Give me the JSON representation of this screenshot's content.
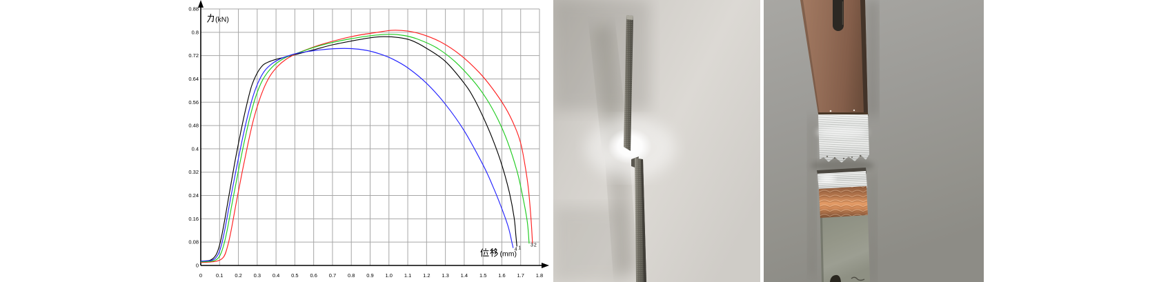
{
  "page": {
    "background": "#ffffff",
    "description": "force-displacement curves with two fractured specimen photos"
  },
  "chart_data": {
    "type": "line",
    "title": "",
    "xlabel": "位移(mm)",
    "ylabel": "力(kN)",
    "xlabel_unit": "(mm)",
    "ylabel_unit": "(kN)",
    "xlim": [
      0,
      1.8
    ],
    "ylim": [
      0,
      0.88
    ],
    "grid": true,
    "grid_color": "#a6a6a6",
    "axis_color": "#000000",
    "legend_position": "none",
    "x_tick_step": 0.1,
    "y_tick_step": 0.08,
    "x_tick_labels": [
      "0",
      "0.1",
      "0.2",
      "0.3",
      "0.4",
      "0.5",
      "0.6",
      "0.7",
      "0.8",
      "0.9",
      "1.0",
      "1.1",
      "1.2",
      "1.3",
      "1.4",
      "1.5",
      "1.6",
      "1.7",
      "1.8"
    ],
    "y_tick_labels": [
      "0",
      "0.08",
      "0.16",
      "0.24",
      "0.32",
      "0.4",
      "0.48",
      "0.56",
      "0.64",
      "0.72",
      "0.8",
      "0.88"
    ],
    "series": [
      {
        "name": "1",
        "color": "#000000",
        "points": [
          [
            0,
            0.015
          ],
          [
            0.05,
            0.018
          ],
          [
            0.08,
            0.035
          ],
          [
            0.1,
            0.07
          ],
          [
            0.12,
            0.13
          ],
          [
            0.15,
            0.24
          ],
          [
            0.18,
            0.35
          ],
          [
            0.21,
            0.45
          ],
          [
            0.24,
            0.54
          ],
          [
            0.27,
            0.615
          ],
          [
            0.3,
            0.66
          ],
          [
            0.33,
            0.687
          ],
          [
            0.36,
            0.698
          ],
          [
            0.4,
            0.707
          ],
          [
            0.45,
            0.715
          ],
          [
            0.5,
            0.723
          ],
          [
            0.6,
            0.74
          ],
          [
            0.7,
            0.757
          ],
          [
            0.8,
            0.77
          ],
          [
            0.9,
            0.781
          ],
          [
            0.97,
            0.785
          ],
          [
            1.05,
            0.782
          ],
          [
            1.12,
            0.772
          ],
          [
            1.2,
            0.745
          ],
          [
            1.3,
            0.7
          ],
          [
            1.4,
            0.625
          ],
          [
            1.45,
            0.575
          ],
          [
            1.5,
            0.51
          ],
          [
            1.55,
            0.435
          ],
          [
            1.6,
            0.345
          ],
          [
            1.64,
            0.25
          ],
          [
            1.665,
            0.165
          ],
          [
            1.675,
            0.1
          ],
          [
            1.68,
            0.065
          ]
        ]
      },
      {
        "name": "2",
        "color": "#ff1f1f",
        "points": [
          [
            0,
            0.01
          ],
          [
            0.08,
            0.014
          ],
          [
            0.12,
            0.028
          ],
          [
            0.14,
            0.06
          ],
          [
            0.16,
            0.115
          ],
          [
            0.19,
            0.22
          ],
          [
            0.22,
            0.32
          ],
          [
            0.25,
            0.415
          ],
          [
            0.28,
            0.5
          ],
          [
            0.31,
            0.565
          ],
          [
            0.34,
            0.615
          ],
          [
            0.37,
            0.652
          ],
          [
            0.41,
            0.684
          ],
          [
            0.45,
            0.706
          ],
          [
            0.5,
            0.724
          ],
          [
            0.56,
            0.74
          ],
          [
            0.64,
            0.758
          ],
          [
            0.74,
            0.776
          ],
          [
            0.84,
            0.79
          ],
          [
            0.94,
            0.8
          ],
          [
            1.02,
            0.807
          ],
          [
            1.1,
            0.804
          ],
          [
            1.18,
            0.792
          ],
          [
            1.28,
            0.765
          ],
          [
            1.38,
            0.722
          ],
          [
            1.48,
            0.662
          ],
          [
            1.55,
            0.607
          ],
          [
            1.62,
            0.54
          ],
          [
            1.67,
            0.475
          ],
          [
            1.7,
            0.42
          ],
          [
            1.72,
            0.355
          ],
          [
            1.74,
            0.27
          ],
          [
            1.755,
            0.16
          ],
          [
            1.763,
            0.075
          ]
        ]
      },
      {
        "name": "3",
        "color": "#1ecb1e",
        "points": [
          [
            0,
            0.012
          ],
          [
            0.07,
            0.016
          ],
          [
            0.1,
            0.032
          ],
          [
            0.12,
            0.065
          ],
          [
            0.14,
            0.12
          ],
          [
            0.17,
            0.225
          ],
          [
            0.2,
            0.325
          ],
          [
            0.23,
            0.42
          ],
          [
            0.26,
            0.505
          ],
          [
            0.29,
            0.575
          ],
          [
            0.32,
            0.625
          ],
          [
            0.35,
            0.658
          ],
          [
            0.39,
            0.687
          ],
          [
            0.43,
            0.706
          ],
          [
            0.47,
            0.719
          ],
          [
            0.52,
            0.73
          ],
          [
            0.6,
            0.748
          ],
          [
            0.7,
            0.765
          ],
          [
            0.8,
            0.778
          ],
          [
            0.9,
            0.788
          ],
          [
            1.0,
            0.793
          ],
          [
            1.08,
            0.789
          ],
          [
            1.15,
            0.777
          ],
          [
            1.25,
            0.748
          ],
          [
            1.35,
            0.7
          ],
          [
            1.45,
            0.632
          ],
          [
            1.52,
            0.57
          ],
          [
            1.58,
            0.5
          ],
          [
            1.63,
            0.425
          ],
          [
            1.68,
            0.325
          ],
          [
            1.71,
            0.24
          ],
          [
            1.735,
            0.15
          ],
          [
            1.745,
            0.075
          ]
        ]
      },
      {
        "name": "4",
        "color": "#2222ff",
        "points": [
          [
            0,
            0.015
          ],
          [
            0.06,
            0.018
          ],
          [
            0.09,
            0.035
          ],
          [
            0.11,
            0.07
          ],
          [
            0.13,
            0.13
          ],
          [
            0.16,
            0.235
          ],
          [
            0.19,
            0.335
          ],
          [
            0.22,
            0.43
          ],
          [
            0.25,
            0.515
          ],
          [
            0.28,
            0.585
          ],
          [
            0.31,
            0.635
          ],
          [
            0.34,
            0.668
          ],
          [
            0.38,
            0.693
          ],
          [
            0.42,
            0.708
          ],
          [
            0.46,
            0.718
          ],
          [
            0.5,
            0.726
          ],
          [
            0.56,
            0.733
          ],
          [
            0.64,
            0.74
          ],
          [
            0.72,
            0.744
          ],
          [
            0.8,
            0.744
          ],
          [
            0.88,
            0.738
          ],
          [
            0.95,
            0.726
          ],
          [
            1.02,
            0.708
          ],
          [
            1.1,
            0.678
          ],
          [
            1.2,
            0.625
          ],
          [
            1.3,
            0.553
          ],
          [
            1.4,
            0.462
          ],
          [
            1.5,
            0.345
          ],
          [
            1.55,
            0.275
          ],
          [
            1.6,
            0.195
          ],
          [
            1.635,
            0.13
          ],
          [
            1.655,
            0.075
          ],
          [
            1.66,
            0.06
          ]
        ]
      }
    ]
  },
  "photos": [
    {
      "label": "fractured thin strip specimen, side (edge) view"
    },
    {
      "label": "fractured brazed copper joint specimen, front view"
    }
  ]
}
